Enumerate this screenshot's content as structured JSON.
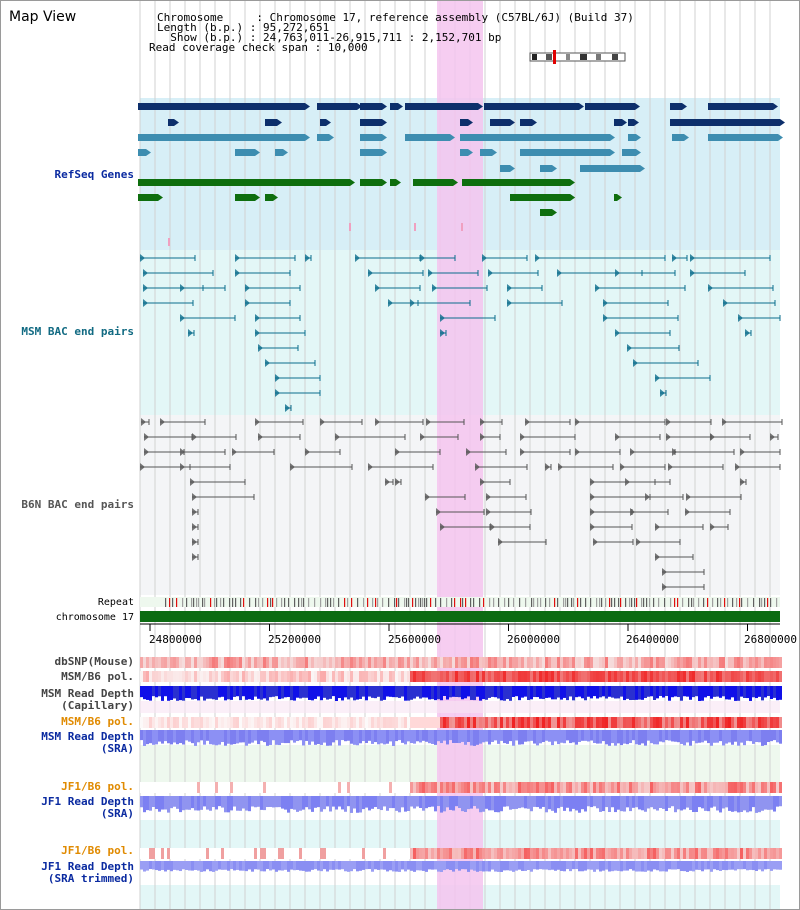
{
  "title": "Map View",
  "header": {
    "lines": [
      {
        "key": "Chromosome     ",
        "value": "Chromosome 17, reference assembly (C57BL/6J) (Build 37)"
      },
      {
        "key": "Length (b.p.) ",
        "value": "95,272,651"
      },
      {
        "key": "  Show (b.p.) ",
        "value": "24,763,011-26,915,711 : 2,152,701 bp"
      },
      {
        "key": "Read coverage check span ",
        "value": "10,000"
      }
    ]
  },
  "tracks": {
    "refseq": "RefSeq Genes",
    "msm_bac": "MSM BAC end pairs",
    "b6n_bac": "B6N BAC end pairs",
    "repeat": "Repeat",
    "chromosome": "chromosome 17",
    "dbsnp": "dbSNP(Mouse)",
    "msm_b6_pol": "MSM/B6 pol.",
    "msm_depth_cap_1": "MSM Read Depth",
    "msm_depth_cap_2": "(Capillary)",
    "msm_b6_pol2": "MSM/B6 pol.",
    "msm_depth_sra_1": "MSM Read Depth",
    "msm_depth_sra_2": "(SRA)",
    "jf1_pol": "JF1/B6 pol.",
    "jf1_depth_1": "JF1 Read Depth",
    "jf1_depth_2": "(SRA)",
    "jf1_pol2": "JF1/B6 pol.",
    "jf1_trim_1": "JF1 Read Depth",
    "jf1_trim_2": "(SRA trimmed)"
  },
  "axis": {
    "ticks": [
      "24800000",
      "25200000",
      "25600000",
      "26000000",
      "26400000",
      "26800000"
    ]
  },
  "colors": {
    "refseq_dark": "#0d2f6b",
    "refseq_mid": "#3d8db0",
    "refseq_green": "#0e6e0e",
    "msm_bac": "#0b6d8c",
    "b6n_bac": "#555555",
    "highlight": "#f5c4ee",
    "label_blue": "#0a2aa0",
    "label_orange": "#e08a00",
    "label_teal": "#116a82"
  }
}
